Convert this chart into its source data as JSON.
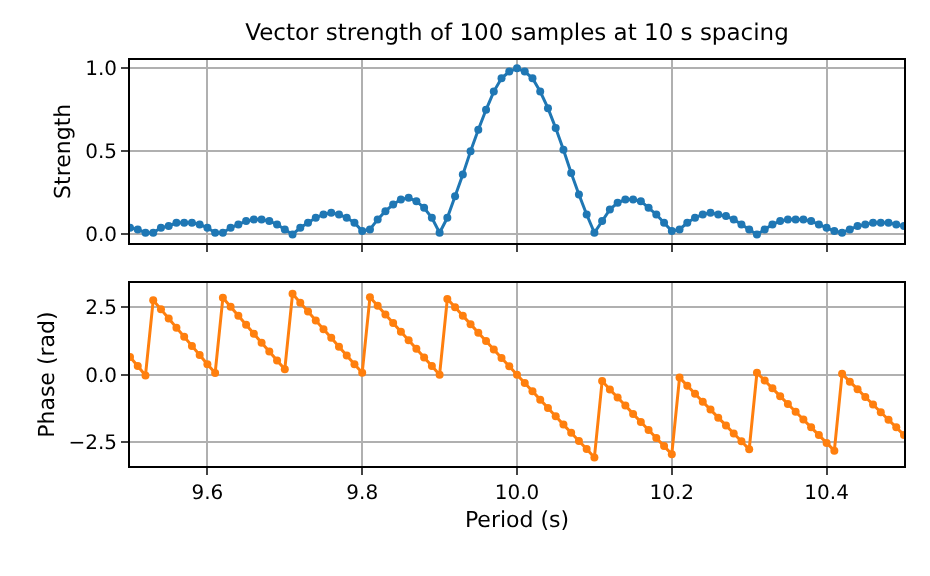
{
  "chart_data": [
    {
      "type": "line",
      "title": "Vector strength of 100 samples at 10 s spacing",
      "ylabel": "Strength",
      "x": [
        9.5,
        9.51,
        9.52,
        9.53,
        9.54,
        9.55,
        9.56,
        9.57,
        9.58,
        9.59,
        9.6,
        9.61,
        9.62,
        9.63,
        9.64,
        9.65,
        9.66,
        9.67,
        9.68,
        9.69,
        9.7,
        9.71,
        9.72,
        9.73,
        9.74,
        9.75,
        9.76,
        9.77,
        9.78,
        9.79,
        9.8,
        9.81,
        9.82,
        9.83,
        9.84,
        9.85,
        9.86,
        9.87,
        9.88,
        9.89,
        9.9,
        9.91,
        9.92,
        9.93,
        9.94,
        9.95,
        9.96,
        9.97,
        9.98,
        9.99,
        10.0,
        10.01,
        10.02,
        10.03,
        10.04,
        10.05,
        10.06,
        10.07,
        10.08,
        10.09,
        10.1,
        10.11,
        10.12,
        10.13,
        10.14,
        10.15,
        10.16,
        10.17,
        10.18,
        10.19,
        10.2,
        10.21,
        10.22,
        10.23,
        10.24,
        10.25,
        10.26,
        10.27,
        10.28,
        10.29,
        10.3,
        10.31,
        10.32,
        10.33,
        10.34,
        10.35,
        10.36,
        10.37,
        10.38,
        10.39,
        10.4,
        10.41,
        10.42,
        10.43,
        10.44,
        10.45,
        10.46,
        10.47,
        10.48,
        10.49,
        10.5
      ],
      "series": [
        {
          "color": "#1f77b4",
          "values": [
            0.04,
            0.03,
            0.01,
            0.01,
            0.04,
            0.05,
            0.07,
            0.07,
            0.07,
            0.06,
            0.04,
            0.01,
            0.01,
            0.04,
            0.06,
            0.08,
            0.09,
            0.09,
            0.08,
            0.06,
            0.03,
            0.0,
            0.04,
            0.07,
            0.1,
            0.12,
            0.13,
            0.12,
            0.1,
            0.07,
            0.02,
            0.03,
            0.09,
            0.14,
            0.18,
            0.21,
            0.22,
            0.2,
            0.16,
            0.1,
            0.01,
            0.1,
            0.23,
            0.36,
            0.5,
            0.63,
            0.75,
            0.86,
            0.94,
            0.98,
            1.0,
            0.98,
            0.94,
            0.86,
            0.76,
            0.64,
            0.51,
            0.37,
            0.24,
            0.12,
            0.01,
            0.08,
            0.15,
            0.19,
            0.21,
            0.21,
            0.2,
            0.16,
            0.12,
            0.07,
            0.02,
            0.03,
            0.07,
            0.1,
            0.12,
            0.13,
            0.12,
            0.11,
            0.09,
            0.06,
            0.03,
            0.0,
            0.03,
            0.06,
            0.08,
            0.09,
            0.09,
            0.09,
            0.08,
            0.06,
            0.04,
            0.02,
            0.01,
            0.03,
            0.05,
            0.06,
            0.07,
            0.07,
            0.07,
            0.06,
            0.05
          ]
        }
      ],
      "xlim": [
        9.5,
        10.5
      ],
      "xticks": [
        {
          "value": 9.6,
          "label": null
        },
        {
          "value": 9.8,
          "label": null
        },
        {
          "value": 10.0,
          "label": null
        },
        {
          "value": 10.2,
          "label": null
        },
        {
          "value": 10.4,
          "label": null
        }
      ],
      "ylim": [
        -0.05,
        1.05
      ],
      "yticks": [
        {
          "value": 0,
          "label": "0.0"
        },
        0.5,
        {
          "value": 1,
          "label": "1.0"
        }
      ],
      "tick_labels": "y",
      "grid": true,
      "marker": "circle",
      "line_style": "solid"
    },
    {
      "type": "line",
      "xlabel": "Period (s)",
      "ylabel": "Phase (rad)",
      "x": [
        9.5,
        9.51,
        9.52,
        9.53,
        9.54,
        9.55,
        9.56,
        9.57,
        9.58,
        9.59,
        9.6,
        9.61,
        9.62,
        9.63,
        9.64,
        9.65,
        9.66,
        9.67,
        9.68,
        9.69,
        9.7,
        9.71,
        9.72,
        9.73,
        9.74,
        9.75,
        9.76,
        9.77,
        9.78,
        9.79,
        9.8,
        9.81,
        9.82,
        9.83,
        9.84,
        9.85,
        9.86,
        9.87,
        9.88,
        9.89,
        9.9,
        9.91,
        9.92,
        9.93,
        9.94,
        9.95,
        9.96,
        9.97,
        9.98,
        9.99,
        10.0,
        10.01,
        10.02,
        10.03,
        10.04,
        10.05,
        10.06,
        10.07,
        10.08,
        10.09,
        10.1,
        10.11,
        10.12,
        10.13,
        10.14,
        10.15,
        10.16,
        10.17,
        10.18,
        10.19,
        10.2,
        10.21,
        10.22,
        10.23,
        10.24,
        10.25,
        10.26,
        10.27,
        10.28,
        10.29,
        10.3,
        10.31,
        10.32,
        10.33,
        10.34,
        10.35,
        10.36,
        10.37,
        10.38,
        10.39,
        10.4,
        10.41,
        10.42,
        10.43,
        10.44,
        10.45,
        10.46,
        10.47,
        10.48,
        10.49,
        10.5
      ],
      "series": [
        {
          "color": "#ff7f0e",
          "values": [
            0.66,
            0.32,
            -0.03,
            2.77,
            2.43,
            2.09,
            1.75,
            1.41,
            1.07,
            0.73,
            0.39,
            0.06,
            2.86,
            2.53,
            2.19,
            1.86,
            1.52,
            1.19,
            0.86,
            0.53,
            0.2,
            3.01,
            2.68,
            2.35,
            2.02,
            1.69,
            1.37,
            1.04,
            0.71,
            0.39,
            0.07,
            2.88,
            2.56,
            2.24,
            1.92,
            1.6,
            1.28,
            0.96,
            0.64,
            0.32,
            0.0,
            2.82,
            2.51,
            2.19,
            1.88,
            1.56,
            1.25,
            0.94,
            0.62,
            0.31,
            0.0,
            -0.31,
            -0.62,
            -0.93,
            -1.24,
            -1.55,
            -1.86,
            -2.16,
            -2.47,
            -2.77,
            -3.08,
            -0.24,
            -0.55,
            -0.85,
            -1.15,
            -1.46,
            -1.76,
            -2.06,
            -2.36,
            -2.66,
            -2.96,
            -0.11,
            -0.41,
            -0.71,
            -1.01,
            -1.3,
            -1.6,
            -1.89,
            -2.19,
            -2.48,
            -2.78,
            0.07,
            -0.22,
            -0.51,
            -0.8,
            -1.09,
            -1.38,
            -1.67,
            -1.96,
            -2.25,
            -2.54,
            -2.83,
            0.03,
            -0.26,
            -0.54,
            -0.83,
            -1.11,
            -1.4,
            -1.68,
            -1.96,
            -2.25
          ]
        }
      ],
      "xlim": [
        9.5,
        10.5
      ],
      "xticks": [
        9.6,
        9.8,
        {
          "value": 10.0,
          "label": "10.0"
        },
        10.2,
        10.4
      ],
      "ylim": [
        -3.4,
        3.4
      ],
      "yticks": [
        {
          "value": -2.5,
          "label": "−2.5"
        },
        {
          "value": 0,
          "label": "0.0"
        },
        2.5
      ],
      "grid": true,
      "marker": "circle",
      "line_style": "solid"
    }
  ]
}
